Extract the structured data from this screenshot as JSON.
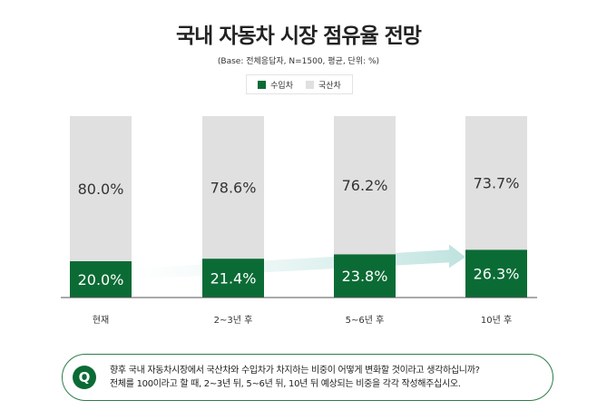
{
  "chart_data": {
    "type": "bar",
    "stacked": true,
    "title": "국내 자동차 시장 점유율 전망",
    "subtitle": "(Base: 전체응답자, N=1500, 평균, 단위: %)",
    "categories": [
      "현재",
      "2~3년 후",
      "5~6년 후",
      "10년 후"
    ],
    "series": [
      {
        "name": "수입차",
        "values": [
          20.0,
          21.4,
          23.8,
          26.3
        ],
        "labels": [
          "20.0%",
          "21.4%",
          "23.8%",
          "26.3%"
        ],
        "color": "#0b6b35"
      },
      {
        "name": "국산차",
        "values": [
          80.0,
          78.6,
          76.2,
          73.7
        ],
        "labels": [
          "80.0%",
          "78.6%",
          "76.2%",
          "73.7%"
        ],
        "color": "#e0e0e0"
      }
    ],
    "ylim": [
      0,
      100
    ],
    "legend": "top-center",
    "grid": false
  },
  "question": {
    "badge": "Q",
    "line1": "향후 국내 자동차시장에서 국산차와 수입차가 차지하는 비중이 어떻게 변화할 것이라고 생각하십니까?",
    "line2": "전체를 100이라고 할 때, 2~3년 뒤, 5~6년 뒤, 10년 뒤 예상되는 비중을 각각 작성해주십시오."
  }
}
